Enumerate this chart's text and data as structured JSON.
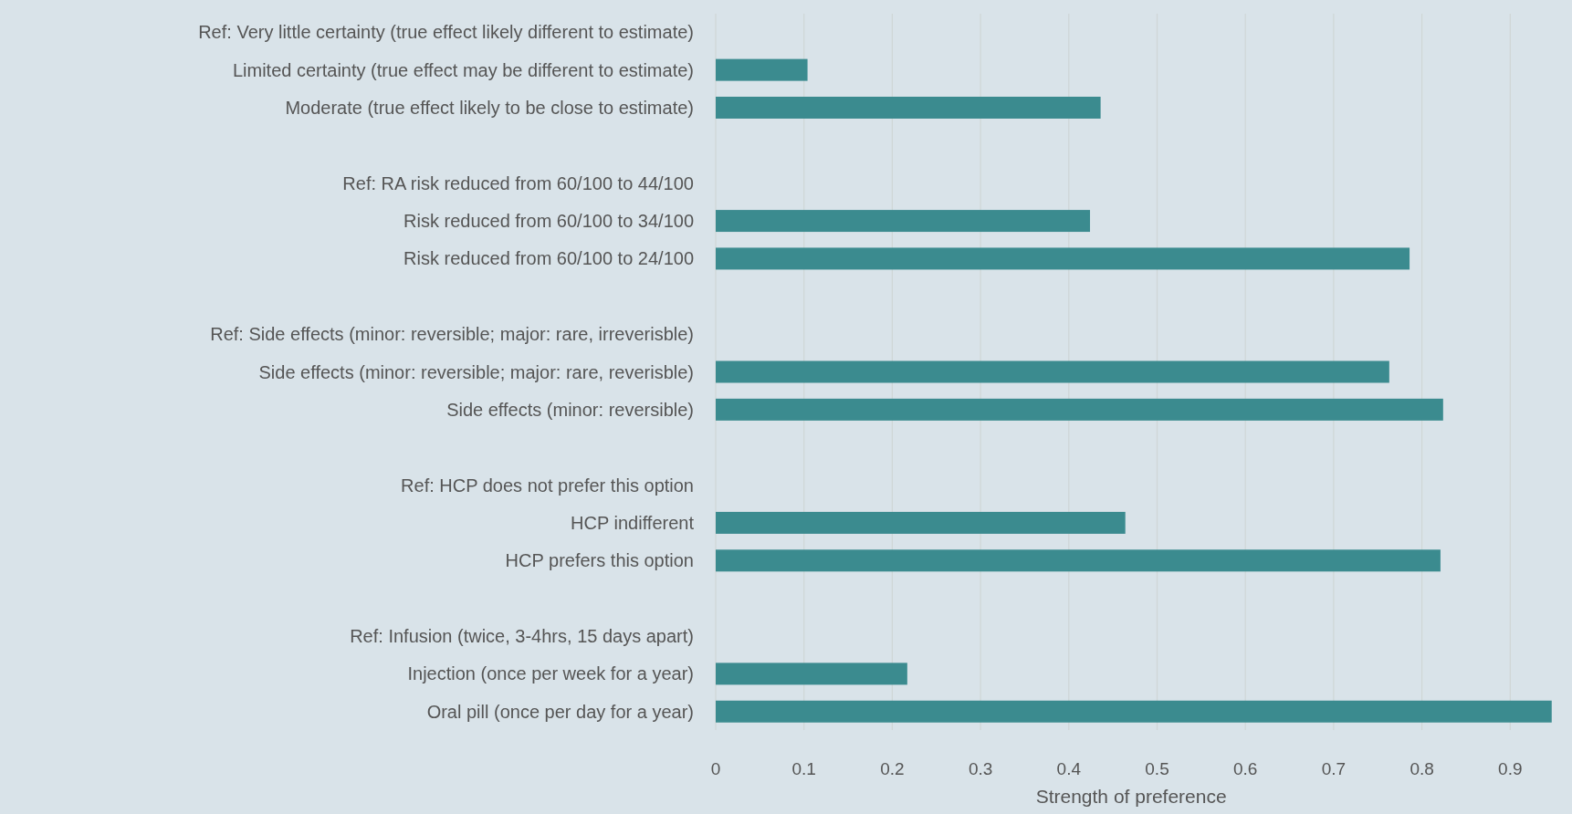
{
  "chart_data": {
    "type": "bar",
    "orientation": "horizontal",
    "xlabel": "Strength of preference",
    "categories": [
      "Ref: Very little certainty (true effect likely different to estimate)",
      "Limited certainty (true effect may be different to estimate)",
      "Moderate (true effect likely to be close to estimate)",
      null,
      "Ref: RA risk reduced from 60/100 to 44/100",
      "Risk reduced from 60/100 to 34/100",
      "Risk reduced from 60/100 to 24/100",
      null,
      "Ref: Side effects (minor: reversible; major: rare, irreverisble)",
      "Side effects (minor: reversible; major: rare, reverisble)",
      "Side effects (minor: reversible)",
      null,
      "Ref: HCP does not prefer this option",
      "HCP indifferent",
      "HCP prefers this option",
      null,
      "Ref: Infusion (twice, 3-4hrs, 15 days apart)",
      "Injection (once per week for a year)",
      "Oral pill (once per day for a year)"
    ],
    "values": [
      null,
      0.104,
      0.436,
      null,
      null,
      0.424,
      0.786,
      null,
      null,
      0.763,
      0.824,
      null,
      null,
      0.464,
      0.821,
      null,
      null,
      0.217,
      0.947
    ],
    "color": "#3b8b8f",
    "xlim": [
      0,
      0.97
    ],
    "xticks": [
      0,
      0.1,
      0.2,
      0.3,
      0.4,
      0.5,
      0.6,
      0.7,
      0.8,
      0.9
    ],
    "grid": "x"
  }
}
